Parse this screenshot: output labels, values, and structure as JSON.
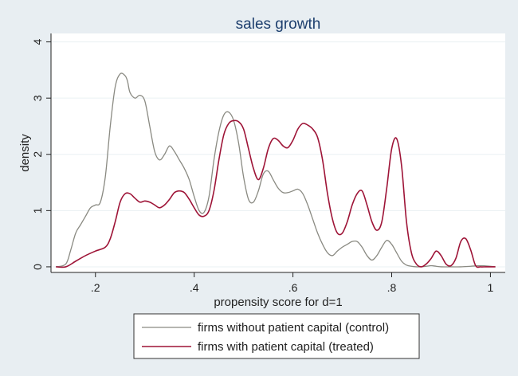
{
  "chart_data": {
    "type": "line",
    "title": "sales growth",
    "xlabel": "propensity score for d=1",
    "ylabel": "density",
    "xlim": [
      0.11,
      1.03
    ],
    "ylim": [
      -0.1,
      4.15
    ],
    "x_ticks": [
      {
        "value": 0.2,
        "label": ".2"
      },
      {
        "value": 0.4,
        "label": ".4"
      },
      {
        "value": 0.6,
        "label": ".6"
      },
      {
        "value": 0.8,
        "label": ".8"
      },
      {
        "value": 1.0,
        "label": "1"
      }
    ],
    "y_ticks": [
      {
        "value": 0,
        "label": "0"
      },
      {
        "value": 1,
        "label": "1"
      },
      {
        "value": 2,
        "label": "2"
      },
      {
        "value": 3,
        "label": "3"
      },
      {
        "value": 4,
        "label": "4"
      }
    ],
    "grid": true,
    "legend_position": "bottom",
    "series": [
      {
        "name": "firms without patient capital (control)",
        "color": "#8a8a82",
        "x": [
          0.12,
          0.14,
          0.15,
          0.16,
          0.17,
          0.18,
          0.19,
          0.2,
          0.21,
          0.22,
          0.23,
          0.24,
          0.25,
          0.26,
          0.265,
          0.27,
          0.28,
          0.29,
          0.3,
          0.31,
          0.32,
          0.33,
          0.34,
          0.35,
          0.36,
          0.37,
          0.38,
          0.39,
          0.4,
          0.41,
          0.42,
          0.43,
          0.44,
          0.45,
          0.46,
          0.47,
          0.48,
          0.49,
          0.5,
          0.51,
          0.52,
          0.53,
          0.54,
          0.55,
          0.56,
          0.57,
          0.58,
          0.59,
          0.6,
          0.61,
          0.62,
          0.63,
          0.64,
          0.65,
          0.66,
          0.67,
          0.68,
          0.69,
          0.7,
          0.71,
          0.72,
          0.73,
          0.74,
          0.75,
          0.76,
          0.77,
          0.78,
          0.79,
          0.8,
          0.81,
          0.82,
          0.83,
          0.84,
          0.85,
          0.86,
          0.87,
          0.88,
          0.89,
          0.9,
          0.92,
          0.94,
          0.96,
          0.98,
          1.0,
          1.01
        ],
        "y": [
          0,
          0.05,
          0.3,
          0.6,
          0.75,
          0.9,
          1.05,
          1.1,
          1.15,
          1.6,
          2.5,
          3.2,
          3.43,
          3.4,
          3.3,
          3.1,
          3.0,
          3.05,
          2.95,
          2.5,
          2.05,
          1.9,
          2.0,
          2.15,
          2.05,
          1.9,
          1.75,
          1.55,
          1.25,
          1.0,
          0.97,
          1.25,
          1.9,
          2.4,
          2.7,
          2.75,
          2.6,
          2.2,
          1.6,
          1.2,
          1.15,
          1.35,
          1.65,
          1.7,
          1.55,
          1.4,
          1.32,
          1.32,
          1.35,
          1.38,
          1.3,
          1.1,
          0.85,
          0.6,
          0.4,
          0.25,
          0.2,
          0.28,
          0.35,
          0.4,
          0.45,
          0.45,
          0.35,
          0.2,
          0.12,
          0.2,
          0.35,
          0.47,
          0.4,
          0.25,
          0.1,
          0.03,
          0.01,
          0.0,
          0.0,
          0.01,
          0.02,
          0.01,
          0.0,
          0.0,
          0.0,
          0.01,
          0.02,
          0.01,
          0.0
        ]
      },
      {
        "name": "firms with patient capital (treated)",
        "color": "#9e1437",
        "x": [
          0.12,
          0.14,
          0.16,
          0.18,
          0.2,
          0.22,
          0.23,
          0.24,
          0.25,
          0.26,
          0.27,
          0.28,
          0.29,
          0.3,
          0.31,
          0.32,
          0.33,
          0.34,
          0.35,
          0.36,
          0.37,
          0.38,
          0.39,
          0.4,
          0.41,
          0.42,
          0.43,
          0.44,
          0.45,
          0.46,
          0.47,
          0.48,
          0.49,
          0.5,
          0.51,
          0.52,
          0.53,
          0.54,
          0.55,
          0.56,
          0.57,
          0.58,
          0.59,
          0.6,
          0.61,
          0.62,
          0.63,
          0.64,
          0.65,
          0.66,
          0.67,
          0.68,
          0.69,
          0.7,
          0.71,
          0.72,
          0.73,
          0.74,
          0.75,
          0.76,
          0.77,
          0.78,
          0.79,
          0.8,
          0.81,
          0.82,
          0.83,
          0.84,
          0.85,
          0.86,
          0.87,
          0.88,
          0.89,
          0.9,
          0.91,
          0.92,
          0.93,
          0.94,
          0.95,
          0.96,
          0.97,
          0.98,
          0.99,
          1.0,
          1.01
        ],
        "y": [
          0,
          0.0,
          0.1,
          0.2,
          0.28,
          0.35,
          0.5,
          0.8,
          1.15,
          1.3,
          1.3,
          1.22,
          1.15,
          1.17,
          1.15,
          1.1,
          1.05,
          1.1,
          1.2,
          1.32,
          1.35,
          1.32,
          1.2,
          1.05,
          0.92,
          0.9,
          1.0,
          1.35,
          1.9,
          2.35,
          2.55,
          2.6,
          2.58,
          2.45,
          2.1,
          1.75,
          1.55,
          1.75,
          2.1,
          2.28,
          2.25,
          2.15,
          2.12,
          2.25,
          2.45,
          2.55,
          2.52,
          2.45,
          2.3,
          1.9,
          1.3,
          0.85,
          0.6,
          0.6,
          0.8,
          1.1,
          1.3,
          1.35,
          1.1,
          0.8,
          0.65,
          0.8,
          1.4,
          2.1,
          2.28,
          1.8,
          0.8,
          0.25,
          0.05,
          0.0,
          0.05,
          0.15,
          0.28,
          0.2,
          0.05,
          0.02,
          0.15,
          0.45,
          0.5,
          0.3,
          0.02,
          0.0,
          0.0,
          0.0,
          0.0
        ]
      }
    ]
  }
}
